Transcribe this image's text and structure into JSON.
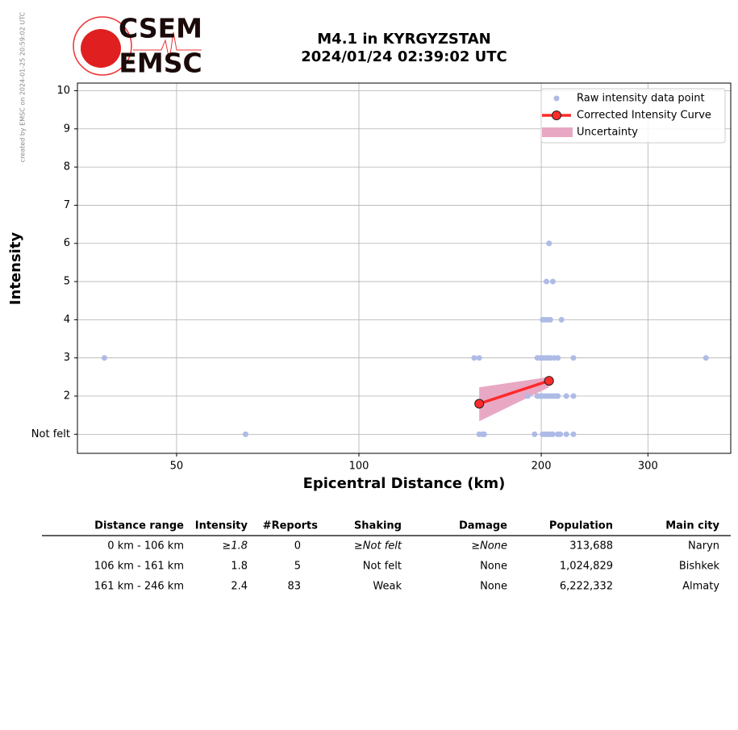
{
  "watermark": "created by EMSC on 2024-01-25 20:59:02 UTC",
  "logo": [
    "CSEM",
    "EMSC"
  ],
  "chart_data": {
    "type": "scatter",
    "title": "M4.1 in KYRGYZSTAN",
    "subtitle": "2024/01/24 02:39:02 UTC",
    "x_label": "Epicentral Distance (km)",
    "y_label": "Intensity",
    "xscale": "log",
    "xlim": [
      34.3,
      411
    ],
    "xticks": [
      50,
      100,
      200,
      300
    ],
    "ylim": [
      0.5,
      10.2
    ],
    "yticks": [
      {
        "value": 1,
        "label": "Not felt"
      },
      2,
      3,
      4,
      5,
      6,
      7,
      8,
      9,
      10
    ],
    "grid": true,
    "legend": "upper right",
    "series": [
      {
        "name": "Raw intensity data point",
        "color": "#aebbe6",
        "x": [
          38,
          65,
          155,
          158,
          158,
          160,
          161,
          190,
          195,
          197,
          199,
          201,
          203,
          205,
          207,
          210,
          213,
          226,
          374,
          197,
          199,
          201,
          203,
          205,
          207,
          209,
          211,
          213,
          220,
          226,
          201,
          203,
          205,
          207,
          209,
          213,
          215,
          220,
          226,
          201,
          203,
          205,
          207,
          216,
          204,
          209,
          206
        ],
        "values": [
          3,
          1,
          3,
          3,
          1,
          1,
          1,
          2,
          1,
          3,
          3,
          3,
          3,
          3,
          3,
          3,
          3,
          3,
          3,
          2,
          2,
          2,
          2,
          2,
          2,
          2,
          2,
          2,
          2,
          2,
          1,
          1,
          1,
          1,
          1,
          1,
          1,
          1,
          1,
          4,
          4,
          4,
          4,
          4,
          5,
          5,
          6
        ]
      },
      {
        "name": "Corrected Intensity Curve",
        "color": "#ff2a2a",
        "x": [
          158,
          206
        ],
        "values": [
          1.8,
          2.4
        ]
      },
      {
        "name": "Uncertainty",
        "color": "#e8a8c4",
        "x": [
          158,
          206
        ],
        "lower": [
          1.34,
          2.23
        ],
        "upper": [
          2.23,
          2.5
        ]
      }
    ]
  },
  "table": {
    "columns": [
      "Distance range",
      "Intensity",
      "#Reports",
      "Shaking",
      "Damage",
      "Population",
      "Main city"
    ],
    "rows": [
      [
        "0 km -  106 km",
        "≥1.8",
        "0",
        "≥Not felt",
        "≥None",
        "313,688",
        "Naryn"
      ],
      [
        "106 km -  161 km",
        "1.8",
        "5",
        "Not felt",
        "None",
        "1,024,829",
        "Bishkek"
      ],
      [
        "161 km -  246 km",
        "2.4",
        "83",
        "Weak",
        "None",
        "6,222,332",
        "Almaty"
      ]
    ]
  }
}
